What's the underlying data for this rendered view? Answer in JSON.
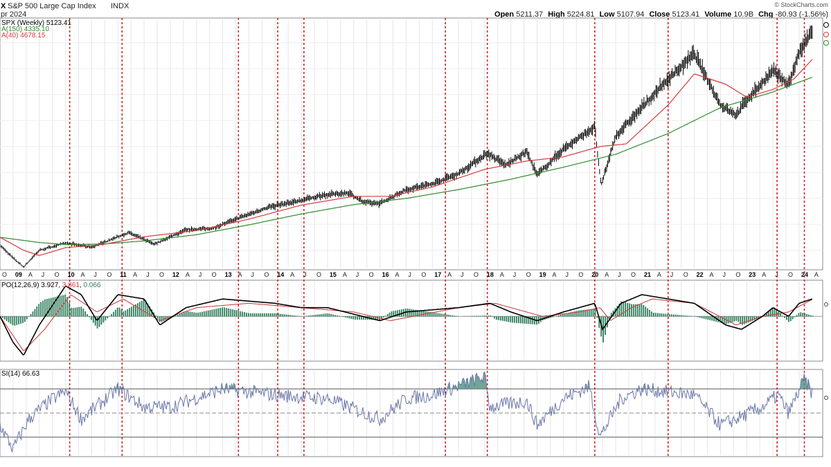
{
  "header": {
    "symbol_fragment": "X",
    "title": "S&P 500 Large Cap Index",
    "exchange": "INDX",
    "date_fragment": "pr 2024",
    "watermark": "© StockCharts.com",
    "quote": {
      "open_label": "Open",
      "open": "5211.37",
      "high_label": "High",
      "high": "5224.81",
      "low_label": "Low",
      "low": "5107.94",
      "close_label": "Close",
      "close": "5123.41",
      "volume_label": "Volume",
      "volume": "10.9B",
      "chg_label": "Chg",
      "chg": "-80.93 (-1.56%)"
    }
  },
  "legend": {
    "price": "SPX (Weekly) 5123.41",
    "sma150": "A(150) 4335.10",
    "sma40": "A(40) 4678.15",
    "ppo_name": "PO(12,26,9)",
    "ppo_v1": "3.927",
    "ppo_v2": "3.861",
    "ppo_v3": "0.066",
    "rsi": "SI(14) 66.63"
  },
  "colors": {
    "price": "#000000",
    "sma150": "#2e8b2e",
    "sma40": "#d43c3c",
    "ppo_signal": "#cc4444",
    "ppo_hist": "#2e7d5b",
    "rsi_line": "#6a76a8",
    "rsi_fill": "#4f8f80",
    "vlines": "#d42020"
  },
  "x_axis": {
    "months": [
      "O",
      "A",
      "J",
      "O",
      "A",
      "J",
      "O",
      "A",
      "J",
      "O",
      "A",
      "J",
      "O",
      "A",
      "J",
      "O",
      "A",
      "J",
      "O",
      "A",
      "J",
      "O",
      "A",
      "J",
      "O",
      "A",
      "J",
      "O",
      "A",
      "J",
      "O",
      "A",
      "J",
      "O",
      "A",
      "J",
      "O",
      "A",
      "J",
      "O",
      "A",
      "J",
      "O",
      "A",
      "J",
      "O",
      "A"
    ],
    "years": [
      "09",
      "10",
      "11",
      "12",
      "13",
      "14",
      "15",
      "16",
      "17",
      "18",
      "19",
      "20",
      "21",
      "22",
      "23",
      "24"
    ]
  },
  "chart_data": [
    {
      "type": "line",
      "panel": "price",
      "series": [
        {
          "name": "SPX (Weekly)",
          "x": [
            2008.75,
            2009.0,
            2009.2,
            2009.5,
            2010.0,
            2010.5,
            2011.2,
            2011.7,
            2012.3,
            2012.8,
            2013.3,
            2013.9,
            2014.5,
            2014.9,
            2015.4,
            2015.7,
            2016.0,
            2016.5,
            2017.0,
            2017.5,
            2018.05,
            2018.4,
            2018.8,
            2019.0,
            2019.5,
            2020.1,
            2020.22,
            2020.5,
            2021.0,
            2021.5,
            2022.0,
            2022.5,
            2022.8,
            2023.0,
            2023.5,
            2023.8,
            2024.0,
            2024.25
          ],
          "y": [
            1100,
            850,
            680,
            1000,
            1140,
            1060,
            1340,
            1120,
            1400,
            1420,
            1620,
            1840,
            1960,
            2060,
            2110,
            1920,
            1900,
            2170,
            2280,
            2480,
            2870,
            2640,
            2900,
            2450,
            2950,
            3380,
            2240,
            3200,
            3750,
            4300,
            4780,
            3800,
            3600,
            3900,
            4450,
            4200,
            4800,
            5220
          ]
        },
        {
          "name": "A(150)",
          "x": [
            2008.75,
            2009.5,
            2010.0,
            2010.7,
            2011.5,
            2012.5,
            2013.5,
            2014.5,
            2015.5,
            2016.5,
            2017.5,
            2018.5,
            2019.5,
            2020.5,
            2021.5,
            2022.5,
            2023.5,
            2024.25
          ],
          "y": [
            1250,
            1150,
            1110,
            1120,
            1180,
            1300,
            1490,
            1700,
            1880,
            2000,
            2170,
            2370,
            2600,
            2850,
            3250,
            3750,
            4050,
            4335
          ]
        },
        {
          "name": "A(40)",
          "x": [
            2008.75,
            2009.2,
            2009.5,
            2010.0,
            2010.7,
            2011.5,
            2012.5,
            2013.5,
            2014.5,
            2015.5,
            2016.2,
            2017.0,
            2018.0,
            2018.8,
            2019.5,
            2020.2,
            2020.7,
            2021.5,
            2022.0,
            2022.6,
            2023.0,
            2023.5,
            2023.9,
            2024.25
          ],
          "y": [
            1250,
            1000,
            900,
            1050,
            1110,
            1260,
            1380,
            1600,
            1870,
            2040,
            2040,
            2220,
            2560,
            2720,
            2800,
            3000,
            3050,
            3800,
            4400,
            4200,
            3950,
            4100,
            4300,
            4678
          ]
        }
      ],
      "ylim": [
        650,
        5450
      ]
    },
    {
      "type": "line",
      "panel": "PPO(12,26,9)",
      "series": [
        {
          "name": "PPO",
          "x": [
            2008.75,
            2009.0,
            2009.2,
            2009.5,
            2010.0,
            2010.3,
            2010.6,
            2011.0,
            2011.5,
            2011.8,
            2012.3,
            2013.0,
            2014.0,
            2014.5,
            2015.0,
            2016.0,
            2016.5,
            2017.5,
            2018.1,
            2018.5,
            2019.0,
            2019.5,
            2020.1,
            2020.25,
            2020.6,
            2021.0,
            2022.0,
            2022.6,
            2022.9,
            2023.3,
            2023.5,
            2023.8,
            2024.0,
            2024.25
          ],
          "y": [
            0,
            -6,
            -9,
            -2,
            7,
            5,
            -1,
            5,
            4,
            -2,
            2,
            4,
            3,
            2,
            2,
            -1,
            1,
            2,
            3,
            1,
            -1,
            1,
            3,
            -3,
            3,
            5,
            3,
            -2,
            -3,
            0,
            2,
            0,
            3,
            4
          ]
        },
        {
          "name": "Signal",
          "x": [
            2008.75,
            2009.2,
            2009.6,
            2010.1,
            2010.6,
            2011.1,
            2011.8,
            2012.5,
            2013.5,
            2014.5,
            2015.5,
            2016.2,
            2017.5,
            2018.2,
            2019.1,
            2019.8,
            2020.2,
            2020.4,
            2020.8,
            2021.2,
            2022.0,
            2022.8,
            2023.3,
            2023.8,
            2024.25
          ],
          "y": [
            0,
            -8,
            -3,
            5,
            1,
            4,
            -1,
            2,
            3,
            2,
            1,
            -1,
            2,
            3,
            0,
            1,
            2,
            -1,
            2,
            4,
            3,
            -2,
            0,
            1,
            3.9
          ]
        }
      ],
      "ylim": [
        -10,
        8
      ]
    },
    {
      "type": "line",
      "panel": "RSI(14)",
      "series": [
        {
          "name": "RSI",
          "x": [
            2008.75,
            2009.0,
            2009.3,
            2009.7,
            2010.0,
            2010.3,
            2011.0,
            2011.5,
            2012.0,
            2013.0,
            2014.0,
            2015.0,
            2016.0,
            2016.5,
            2017.0,
            2018.0,
            2018.1,
            2018.8,
            2019.0,
            2019.5,
            2020.0,
            2020.2,
            2020.6,
            2021.0,
            2022.0,
            2022.5,
            2022.8,
            2023.3,
            2023.6,
            2023.8,
            2024.1,
            2024.25
          ],
          "y": [
            40,
            20,
            45,
            60,
            68,
            45,
            70,
            55,
            55,
            70,
            65,
            62,
            45,
            62,
            65,
            80,
            55,
            60,
            40,
            62,
            72,
            30,
            62,
            70,
            65,
            40,
            45,
            55,
            65,
            50,
            78,
            66.63
          ]
        }
      ],
      "ylim": [
        15,
        85
      ]
    }
  ]
}
